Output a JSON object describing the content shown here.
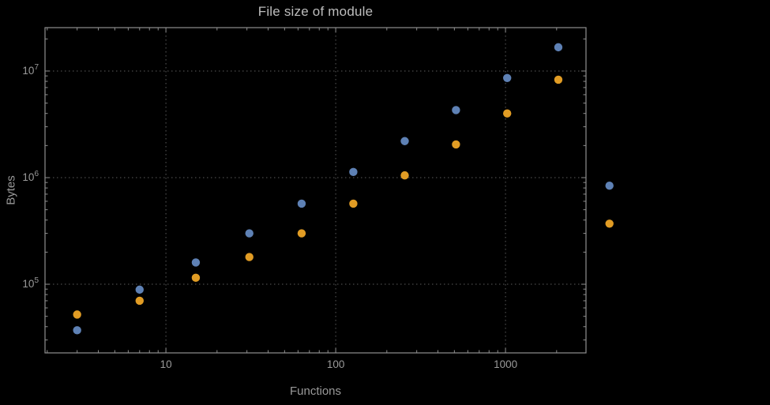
{
  "chart_data": {
    "type": "scatter",
    "title": "File size of module",
    "xlabel": "Functions",
    "ylabel": "Bytes",
    "x_scale": "log",
    "y_scale": "log",
    "grid": "dotted-major",
    "legend": "none",
    "background": "#000000",
    "x": [
      3,
      7,
      15,
      31,
      63,
      127,
      255,
      511,
      1023,
      2047,
      4095
    ],
    "series": [
      {
        "name": "series-1-blue",
        "color": "#5e81b5",
        "values": [
          37000,
          89000,
          160000,
          300000,
          570000,
          1130000,
          2200000,
          4300000,
          8600000,
          16700000,
          840000
        ]
      },
      {
        "name": "series-2-orange",
        "color": "#e19c24",
        "values": [
          52000,
          70000,
          115000,
          180000,
          300000,
          570000,
          1050000,
          2050000,
          4000000,
          8300000,
          370000
        ]
      }
    ],
    "x_ticks": [
      {
        "value": 10,
        "label": "10"
      },
      {
        "value": 100,
        "label": "100"
      },
      {
        "value": 1000,
        "label": "1000"
      }
    ],
    "y_ticks": [
      {
        "value": 100000,
        "mantissa": "10",
        "exponent": "5"
      },
      {
        "value": 1000000,
        "mantissa": "10",
        "exponent": "6"
      },
      {
        "value": 10000000,
        "mantissa": "10",
        "exponent": "7"
      }
    ],
    "x_log_range": [
      0.288,
      3.474
    ],
    "y_log_range": [
      4.356,
      7.407
    ],
    "point_radius": 5.2
  }
}
